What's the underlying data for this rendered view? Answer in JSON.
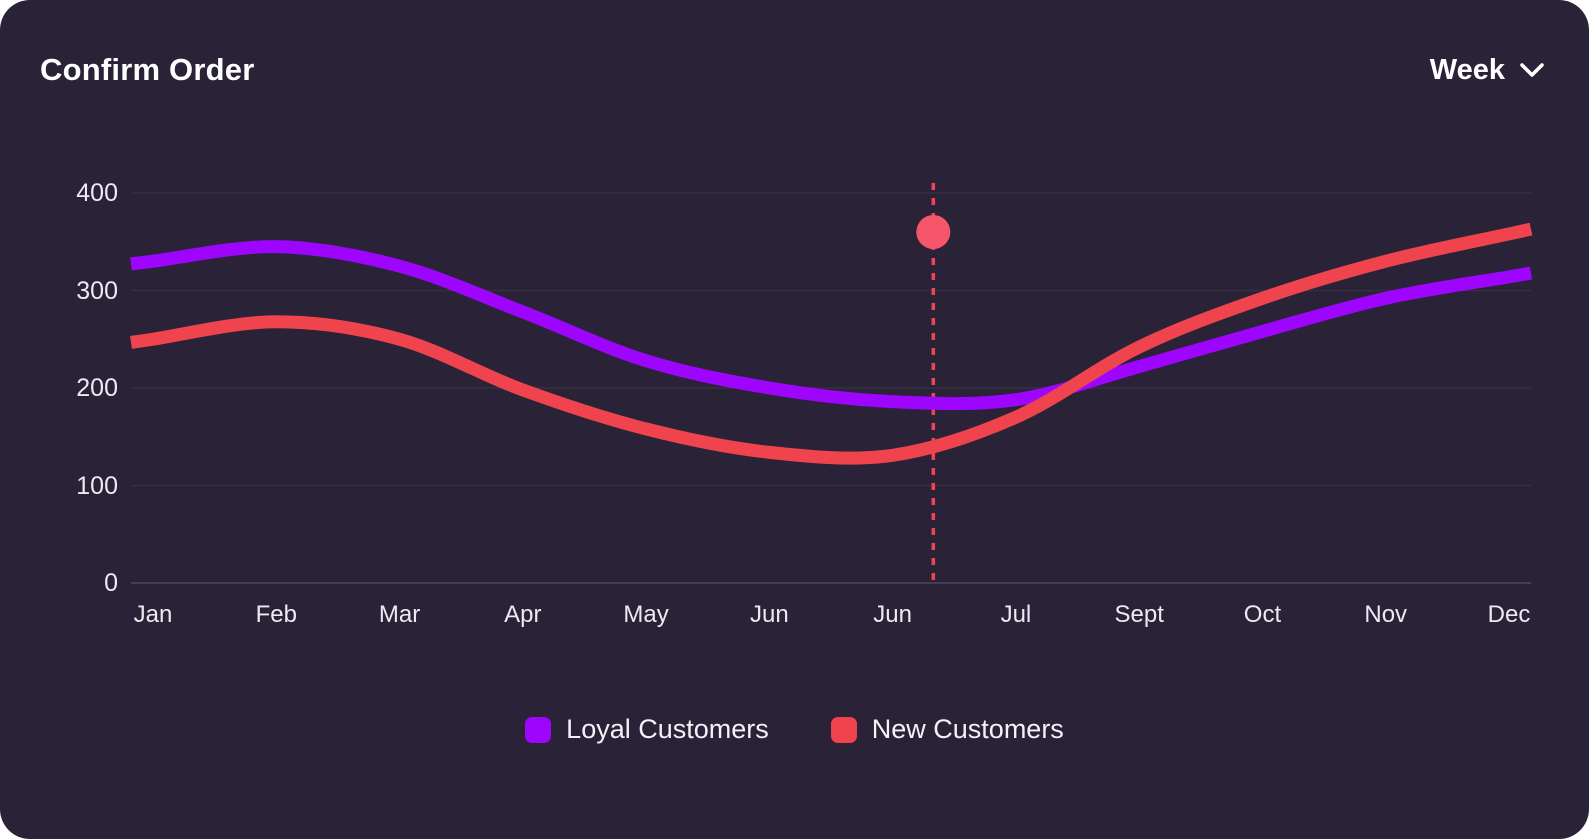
{
  "header": {
    "title": "Confirm Order",
    "period_selector": {
      "value": "Week",
      "icon": "chevron-down-icon"
    }
  },
  "chart_data": {
    "type": "line",
    "x_labels": [
      "Jan",
      "Feb",
      "Mar",
      "Apr",
      "May",
      "Jun",
      "Jun",
      "Jul",
      "Sept",
      "Oct",
      "Nov",
      "Dec"
    ],
    "y_ticks": [
      400,
      300,
      200,
      100,
      0
    ],
    "ylim": [
      0,
      400
    ],
    "grid": "horizontal-only",
    "legend_position": "bottom-center",
    "line_style": "smooth",
    "series": [
      {
        "name": "Loyal Customers",
        "color": "#9D05FC",
        "values": [
          330,
          345,
          325,
          278,
          228,
          200,
          186,
          188,
          222,
          258,
          292,
          314
        ]
      },
      {
        "name": "New Customers",
        "color": "#EF444D",
        "values": [
          250,
          268,
          250,
          198,
          158,
          134,
          131,
          170,
          242,
          292,
          330,
          358
        ]
      }
    ],
    "annotation": {
      "type": "dashed-vline-with-dot",
      "x_month_offset": 6.33,
      "dot_value": 360,
      "dot_color": "#F6566B",
      "line_color": "#EF4456"
    }
  },
  "theme": {
    "page_bg": "#FFFFFF",
    "card_bg": "#2A2236",
    "text_primary": "#FFFFFF",
    "text_axis": "#ECEAF2",
    "gridline": "rgba(255,255,255,0.06)",
    "axis_line": "rgba(255,255,255,0.13)"
  }
}
